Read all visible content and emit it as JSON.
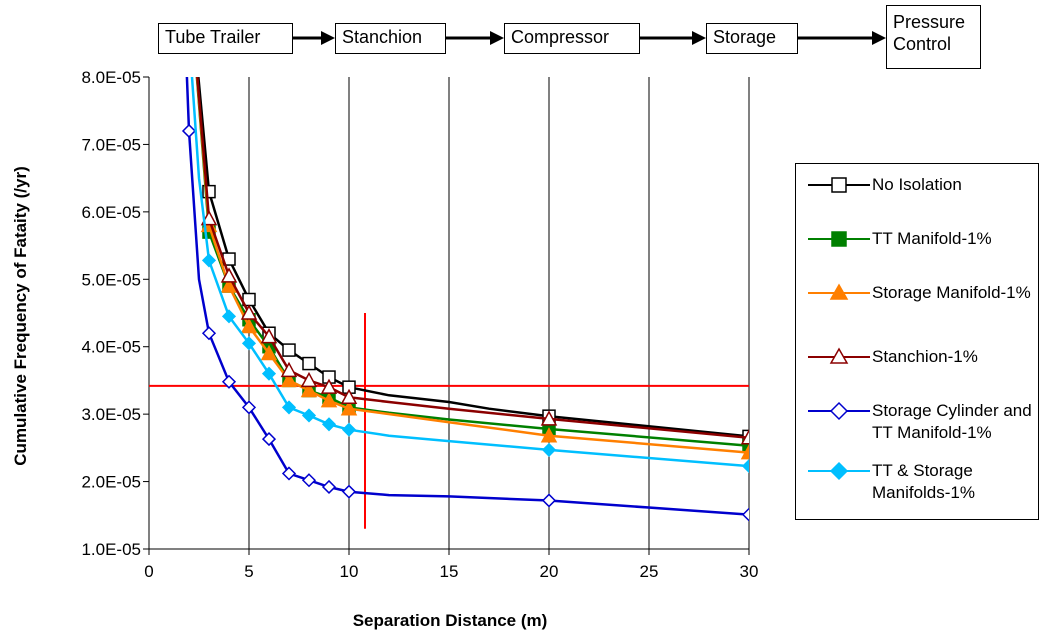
{
  "flow": {
    "boxes": [
      "Tube Trailer",
      "Stanchion",
      "Compressor",
      "Storage",
      "Pressure Control"
    ]
  },
  "chart_data": {
    "type": "line",
    "title": "",
    "xlabel": "Separation Distance (m)",
    "ylabel": "Cumulative Frequency of Fataity (/yr)",
    "xlim": [
      0,
      30
    ],
    "ylim": [
      1e-05,
      8e-05
    ],
    "x_ticks": [
      0,
      5,
      10,
      15,
      20,
      25,
      30
    ],
    "x_tick_labels": [
      "0",
      "5",
      "10",
      "15",
      "20",
      "25",
      "30"
    ],
    "y_ticks": [
      1e-05,
      2e-05,
      3e-05,
      4e-05,
      5e-05,
      6e-05,
      7e-05,
      8e-05
    ],
    "y_tick_labels": [
      "1.0E-05",
      "2.0E-05",
      "3.0E-05",
      "4.0E-05",
      "5.0E-05",
      "6.0E-05",
      "7.0E-05",
      "8.0E-05"
    ],
    "grid": "vertical",
    "legend_position": "right",
    "series": [
      {
        "name": "No Isolation",
        "color": "#000000",
        "marker": "square-open",
        "x": [
          3,
          4,
          5,
          6,
          7,
          8,
          9,
          10,
          20,
          30
        ],
        "y": [
          6.3e-05,
          5.3e-05,
          4.7e-05,
          4.2e-05,
          3.95e-05,
          3.75e-05,
          3.55e-05,
          3.4e-05,
          2.97e-05,
          2.67e-05
        ],
        "line": [
          [
            2.0,
            9.5e-05
          ],
          [
            3,
            6.3e-05
          ],
          [
            4,
            5.3e-05
          ],
          [
            5,
            4.7e-05
          ],
          [
            6,
            4.2e-05
          ],
          [
            7,
            3.95e-05
          ],
          [
            8,
            3.75e-05
          ],
          [
            9,
            3.55e-05
          ],
          [
            10,
            3.4e-05
          ],
          [
            12,
            3.28e-05
          ],
          [
            15,
            3.18e-05
          ],
          [
            17,
            3.08e-05
          ],
          [
            20,
            2.97e-05
          ],
          [
            30,
            2.67e-05
          ]
        ]
      },
      {
        "name": "TT Manifold-1%",
        "color": "#008000",
        "marker": "square-filled",
        "x": [
          3,
          4,
          5,
          6,
          7,
          8,
          9,
          10,
          20,
          30
        ],
        "y": [
          5.7e-05,
          4.9e-05,
          4.4e-05,
          4e-05,
          3.5e-05,
          3.35e-05,
          3.25e-05,
          3.1e-05,
          2.78e-05,
          2.53e-05
        ],
        "line": [
          [
            2.0,
            9.5e-05
          ],
          [
            3,
            5.7e-05
          ],
          [
            4,
            4.9e-05
          ],
          [
            5,
            4.4e-05
          ],
          [
            6,
            4e-05
          ],
          [
            7,
            3.5e-05
          ],
          [
            8,
            3.35e-05
          ],
          [
            9,
            3.25e-05
          ],
          [
            10,
            3.1e-05
          ],
          [
            12,
            3.02e-05
          ],
          [
            15,
            2.92e-05
          ],
          [
            20,
            2.78e-05
          ],
          [
            30,
            2.53e-05
          ]
        ]
      },
      {
        "name": " Storage Manifold-1%",
        "color": "#ff7f00",
        "marker": "triangle-filled",
        "x": [
          3,
          4,
          5,
          6,
          7,
          8,
          9,
          10,
          20,
          30
        ],
        "y": [
          5.8e-05,
          4.9e-05,
          4.3e-05,
          3.9e-05,
          3.5e-05,
          3.35e-05,
          3.2e-05,
          3.08e-05,
          2.68e-05,
          2.43e-05
        ],
        "line": [
          [
            2.0,
            9.5e-05
          ],
          [
            3,
            5.8e-05
          ],
          [
            4,
            4.9e-05
          ],
          [
            5,
            4.3e-05
          ],
          [
            6,
            3.9e-05
          ],
          [
            7,
            3.5e-05
          ],
          [
            8,
            3.35e-05
          ],
          [
            9,
            3.2e-05
          ],
          [
            10,
            3.08e-05
          ],
          [
            15,
            2.88e-05
          ],
          [
            20,
            2.68e-05
          ],
          [
            30,
            2.43e-05
          ]
        ]
      },
      {
        "name": "Stanchion-1%",
        "color": "#8b0000",
        "marker": "triangle-open",
        "x": [
          3,
          4,
          5,
          6,
          7,
          8,
          9,
          10,
          20,
          30
        ],
        "y": [
          5.9e-05,
          5.05e-05,
          4.5e-05,
          4.15e-05,
          3.65e-05,
          3.5e-05,
          3.4e-05,
          3.25e-05,
          2.93e-05,
          2.65e-05
        ],
        "line": [
          [
            2.0,
            9.5e-05
          ],
          [
            3,
            5.9e-05
          ],
          [
            4,
            5.05e-05
          ],
          [
            5,
            4.5e-05
          ],
          [
            6,
            4.15e-05
          ],
          [
            7,
            3.65e-05
          ],
          [
            8,
            3.5e-05
          ],
          [
            9,
            3.4e-05
          ],
          [
            10,
            3.25e-05
          ],
          [
            12,
            3.18e-05
          ],
          [
            15,
            3.08e-05
          ],
          [
            20,
            2.93e-05
          ],
          [
            30,
            2.65e-05
          ]
        ]
      },
      {
        "name": "Storage Cylinder and TT Manifold-1%",
        "color": "#0000cd",
        "marker": "diamond-open",
        "x": [
          2,
          3,
          4,
          5,
          6,
          7,
          8,
          9,
          10,
          20,
          30
        ],
        "y": [
          7.2e-05,
          4.2e-05,
          3.48e-05,
          3.1e-05,
          2.63e-05,
          2.12e-05,
          2.02e-05,
          1.92e-05,
          1.85e-05,
          1.72e-05,
          1.51e-05
        ],
        "line": [
          [
            1.7,
            9.5e-05
          ],
          [
            2,
            7.2e-05
          ],
          [
            2.5,
            5e-05
          ],
          [
            3,
            4.2e-05
          ],
          [
            4,
            3.48e-05
          ],
          [
            5,
            3.1e-05
          ],
          [
            6,
            2.63e-05
          ],
          [
            7,
            2.12e-05
          ],
          [
            8,
            2.02e-05
          ],
          [
            9,
            1.92e-05
          ],
          [
            10,
            1.85e-05
          ],
          [
            12,
            1.8e-05
          ],
          [
            15,
            1.78e-05
          ],
          [
            20,
            1.72e-05
          ],
          [
            30,
            1.51e-05
          ]
        ]
      },
      {
        "name": "TT & Storage Manifolds-1%",
        "color": "#00bfff",
        "marker": "diamond-filled",
        "x": [
          3,
          4,
          5,
          6,
          7,
          8,
          9,
          10,
          20,
          30
        ],
        "y": [
          5.28e-05,
          4.45e-05,
          4.05e-05,
          3.6e-05,
          3.1e-05,
          2.98e-05,
          2.85e-05,
          2.77e-05,
          2.47e-05,
          2.23e-05
        ],
        "line": [
          [
            1.8,
            9.5e-05
          ],
          [
            2.5,
            6.5e-05
          ],
          [
            3,
            5.28e-05
          ],
          [
            4,
            4.45e-05
          ],
          [
            5,
            4.05e-05
          ],
          [
            6,
            3.6e-05
          ],
          [
            7,
            3.1e-05
          ],
          [
            8,
            2.98e-05
          ],
          [
            9,
            2.85e-05
          ],
          [
            10,
            2.77e-05
          ],
          [
            12,
            2.68e-05
          ],
          [
            15,
            2.6e-05
          ],
          [
            20,
            2.47e-05
          ],
          [
            30,
            2.23e-05
          ]
        ]
      }
    ],
    "reference_lines": {
      "color": "#ff0000",
      "horizontal_y": 3.42e-05,
      "horizontal_x_range": [
        0,
        30
      ],
      "vertical_x": 10.8,
      "vertical_y_range": [
        1.3e-05,
        4.5e-05
      ]
    }
  }
}
